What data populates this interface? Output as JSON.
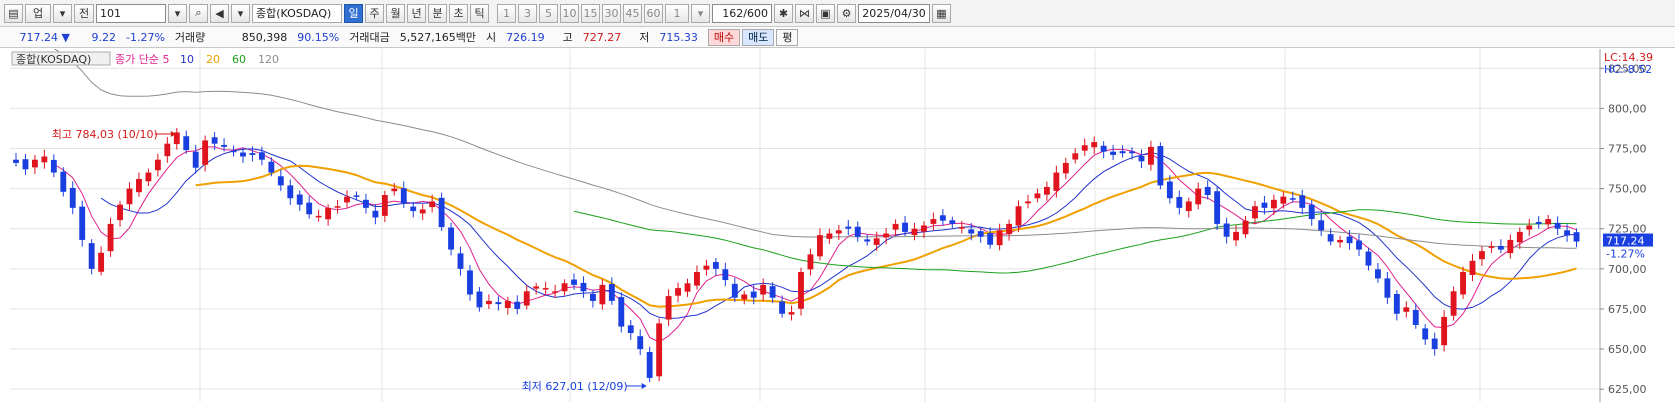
{
  "toolbar": {
    "market_short": "업",
    "prev_label": "전",
    "code": "101",
    "period_buttons": [
      "일",
      "주",
      "월",
      "년",
      "분",
      "초",
      "틱"
    ],
    "period_selected": "일",
    "minute_options": [
      "1",
      "3",
      "5",
      "10",
      "15",
      "30",
      "45",
      "60"
    ],
    "minute_value": "1",
    "count_value": "162/600",
    "date": "2025/04/30",
    "market_name": "종합(KOSDAQ)"
  },
  "infobar": {
    "price": "717.24 ▼",
    "change": "9.22",
    "change_pct": "-1.27%",
    "volume_label": "거래량",
    "volume": "850,398",
    "volume_ratio": "90.15%",
    "amount_label": "거래대금",
    "amount": "5,527,165백만",
    "open_label": "시",
    "open": "726.19",
    "high_label": "고",
    "high": "727.27",
    "low_label": "저",
    "low": "715.33",
    "buy_label": "매수",
    "sell_label": "매도",
    "eval_label": "평"
  },
  "legend": {
    "series_name": "종합(KOSDAQ)",
    "ma_label": "종가 단순",
    "periods": [
      "5",
      "10",
      "20",
      "60",
      "120"
    ],
    "colors": [
      "#e0208c",
      "#2233cc",
      "#f0a000",
      "#1aa01a",
      "#8c8c8c"
    ]
  },
  "right_info": {
    "lc": "LC:14.39",
    "hc": "HC:-8.52",
    "current_price": "717.24",
    "current_pct": "-1.27%"
  },
  "colors": {
    "up": "#e0141e",
    "down": "#1a3fe0",
    "grid": "#e4e4e4"
  },
  "chart_data": {
    "type": "candlestick",
    "ylim": [
      617,
      837
    ],
    "yticks": [
      625,
      650,
      675,
      700,
      725,
      750,
      775,
      800,
      825
    ],
    "ytick_labels": [
      "625,00",
      "650,00",
      "675,00",
      "700,00",
      "725,00",
      "750,00",
      "775,00",
      "800,00",
      "825,00"
    ],
    "annotations": {
      "high_label": "최고 784,03 (10/10)",
      "high_value": 784.03,
      "low_label": "최저 627,01 (12/09)",
      "low_value": 627.01
    },
    "closes": [
      766,
      762,
      768,
      770,
      760,
      748,
      738,
      718,
      700,
      710,
      728,
      740,
      750,
      756,
      760,
      768,
      778,
      785,
      774,
      763,
      780,
      778,
      776,
      773,
      770,
      771,
      768,
      760,
      752,
      744,
      740,
      734,
      733,
      738,
      739,
      745,
      745,
      738,
      732,
      746,
      750,
      741,
      736,
      737,
      742,
      726,
      712,
      700,
      684,
      676,
      680,
      678,
      680,
      675,
      686,
      689,
      688,
      686,
      691,
      690,
      686,
      680,
      690,
      680,
      664,
      660,
      650,
      632,
      666,
      683,
      688,
      691,
      698,
      702,
      700,
      693,
      682,
      684,
      682,
      690,
      682,
      672,
      673,
      698,
      709,
      721,
      722,
      724,
      725,
      720,
      717,
      719,
      722,
      728,
      723,
      725,
      727,
      731,
      730,
      728,
      726,
      722,
      720,
      715,
      724,
      728,
      739,
      742,
      747,
      751,
      760,
      766,
      772,
      777,
      779,
      773,
      771,
      772,
      772,
      767,
      776,
      752,
      744,
      738,
      742,
      750,
      746,
      728,
      720,
      723,
      730,
      739,
      738,
      743,
      745,
      744,
      738,
      731,
      724,
      717,
      718,
      716,
      712,
      702,
      694,
      682,
      672,
      676,
      665,
      656,
      650,
      670,
      686,
      698,
      705,
      711,
      714,
      712,
      718,
      723,
      727,
      728,
      731,
      725,
      721,
      717
    ]
  }
}
